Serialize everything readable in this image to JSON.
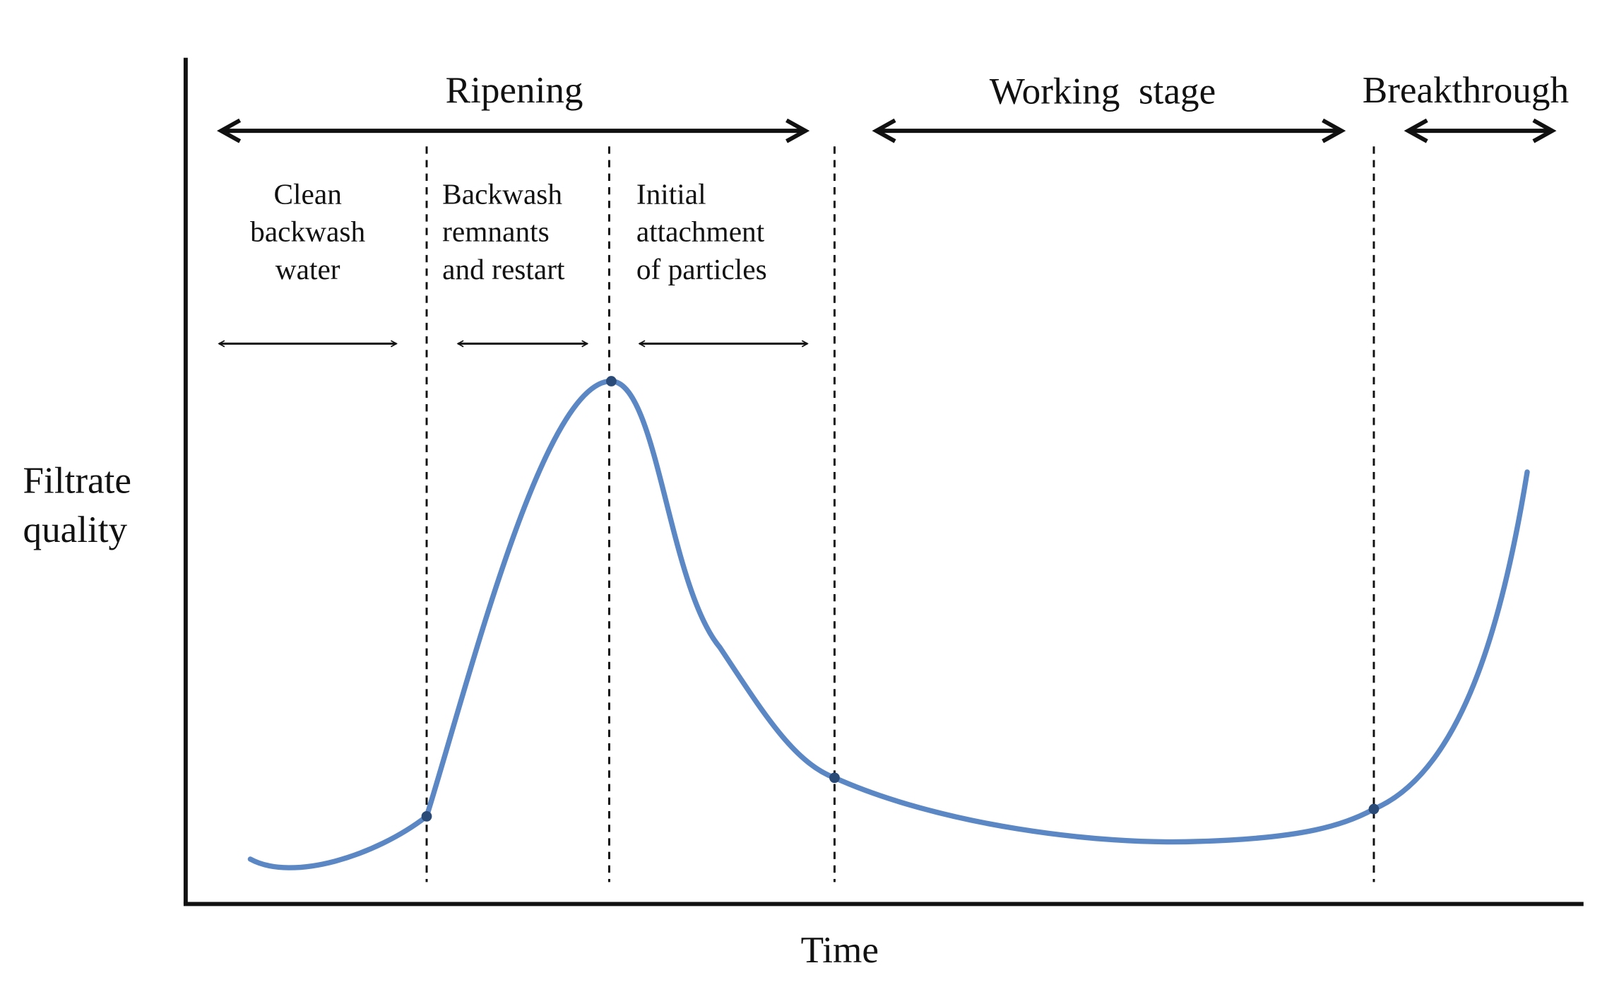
{
  "stages": [
    "Ripening",
    "Working  stage",
    "Breakthrough"
  ],
  "substages": [
    [
      "Clean",
      "backwash",
      "water"
    ],
    [
      "Backwash",
      "remnants",
      "and restart"
    ],
    [
      "Initial",
      "attachment",
      "of particles"
    ]
  ],
  "y_axis_label": [
    "Filtrate",
    "quality"
  ],
  "x_axis_label": "Time"
}
